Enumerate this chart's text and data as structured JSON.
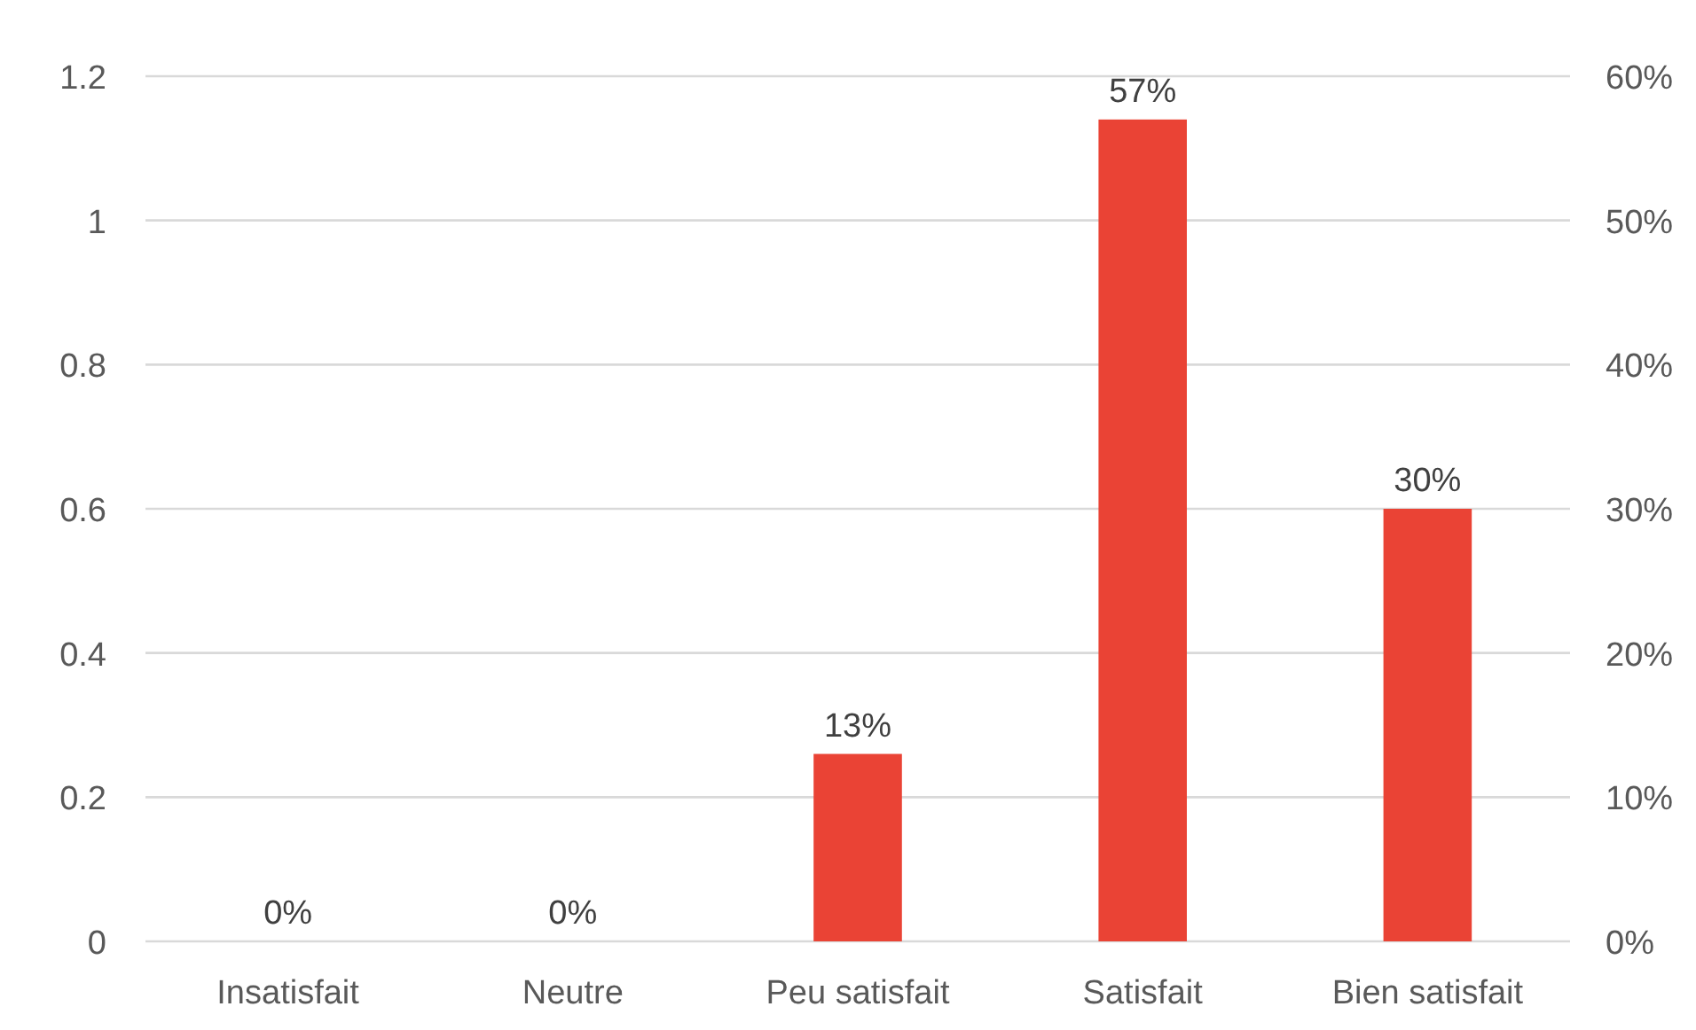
{
  "chart_data": {
    "type": "bar",
    "categories": [
      "Insatisfait",
      "Neutre",
      "Peu satisfait",
      "Satisfait",
      "Bien satisfait"
    ],
    "series": [
      {
        "color": "#ea4335",
        "axis": "y2",
        "values": [
          0,
          0,
          13,
          57,
          30
        ],
        "value_labels": [
          "0%",
          "0%",
          "13%",
          "57%",
          "30%"
        ]
      }
    ],
    "ylim": [
      0,
      1.2
    ],
    "yticks": [
      0,
      0.2,
      0.4,
      0.6,
      0.8,
      1,
      1.2
    ],
    "y2lim": [
      0,
      60
    ],
    "y2ticks": [
      {
        "value": 0,
        "label": "0%"
      },
      {
        "value": 10,
        "label": "10%"
      },
      {
        "value": 20,
        "label": "20%"
      },
      {
        "value": 30,
        "label": "30%"
      },
      {
        "value": 40,
        "label": "40%"
      },
      {
        "value": 50,
        "label": "50%"
      },
      {
        "value": 60,
        "label": "60%"
      }
    ],
    "grid": "y"
  }
}
